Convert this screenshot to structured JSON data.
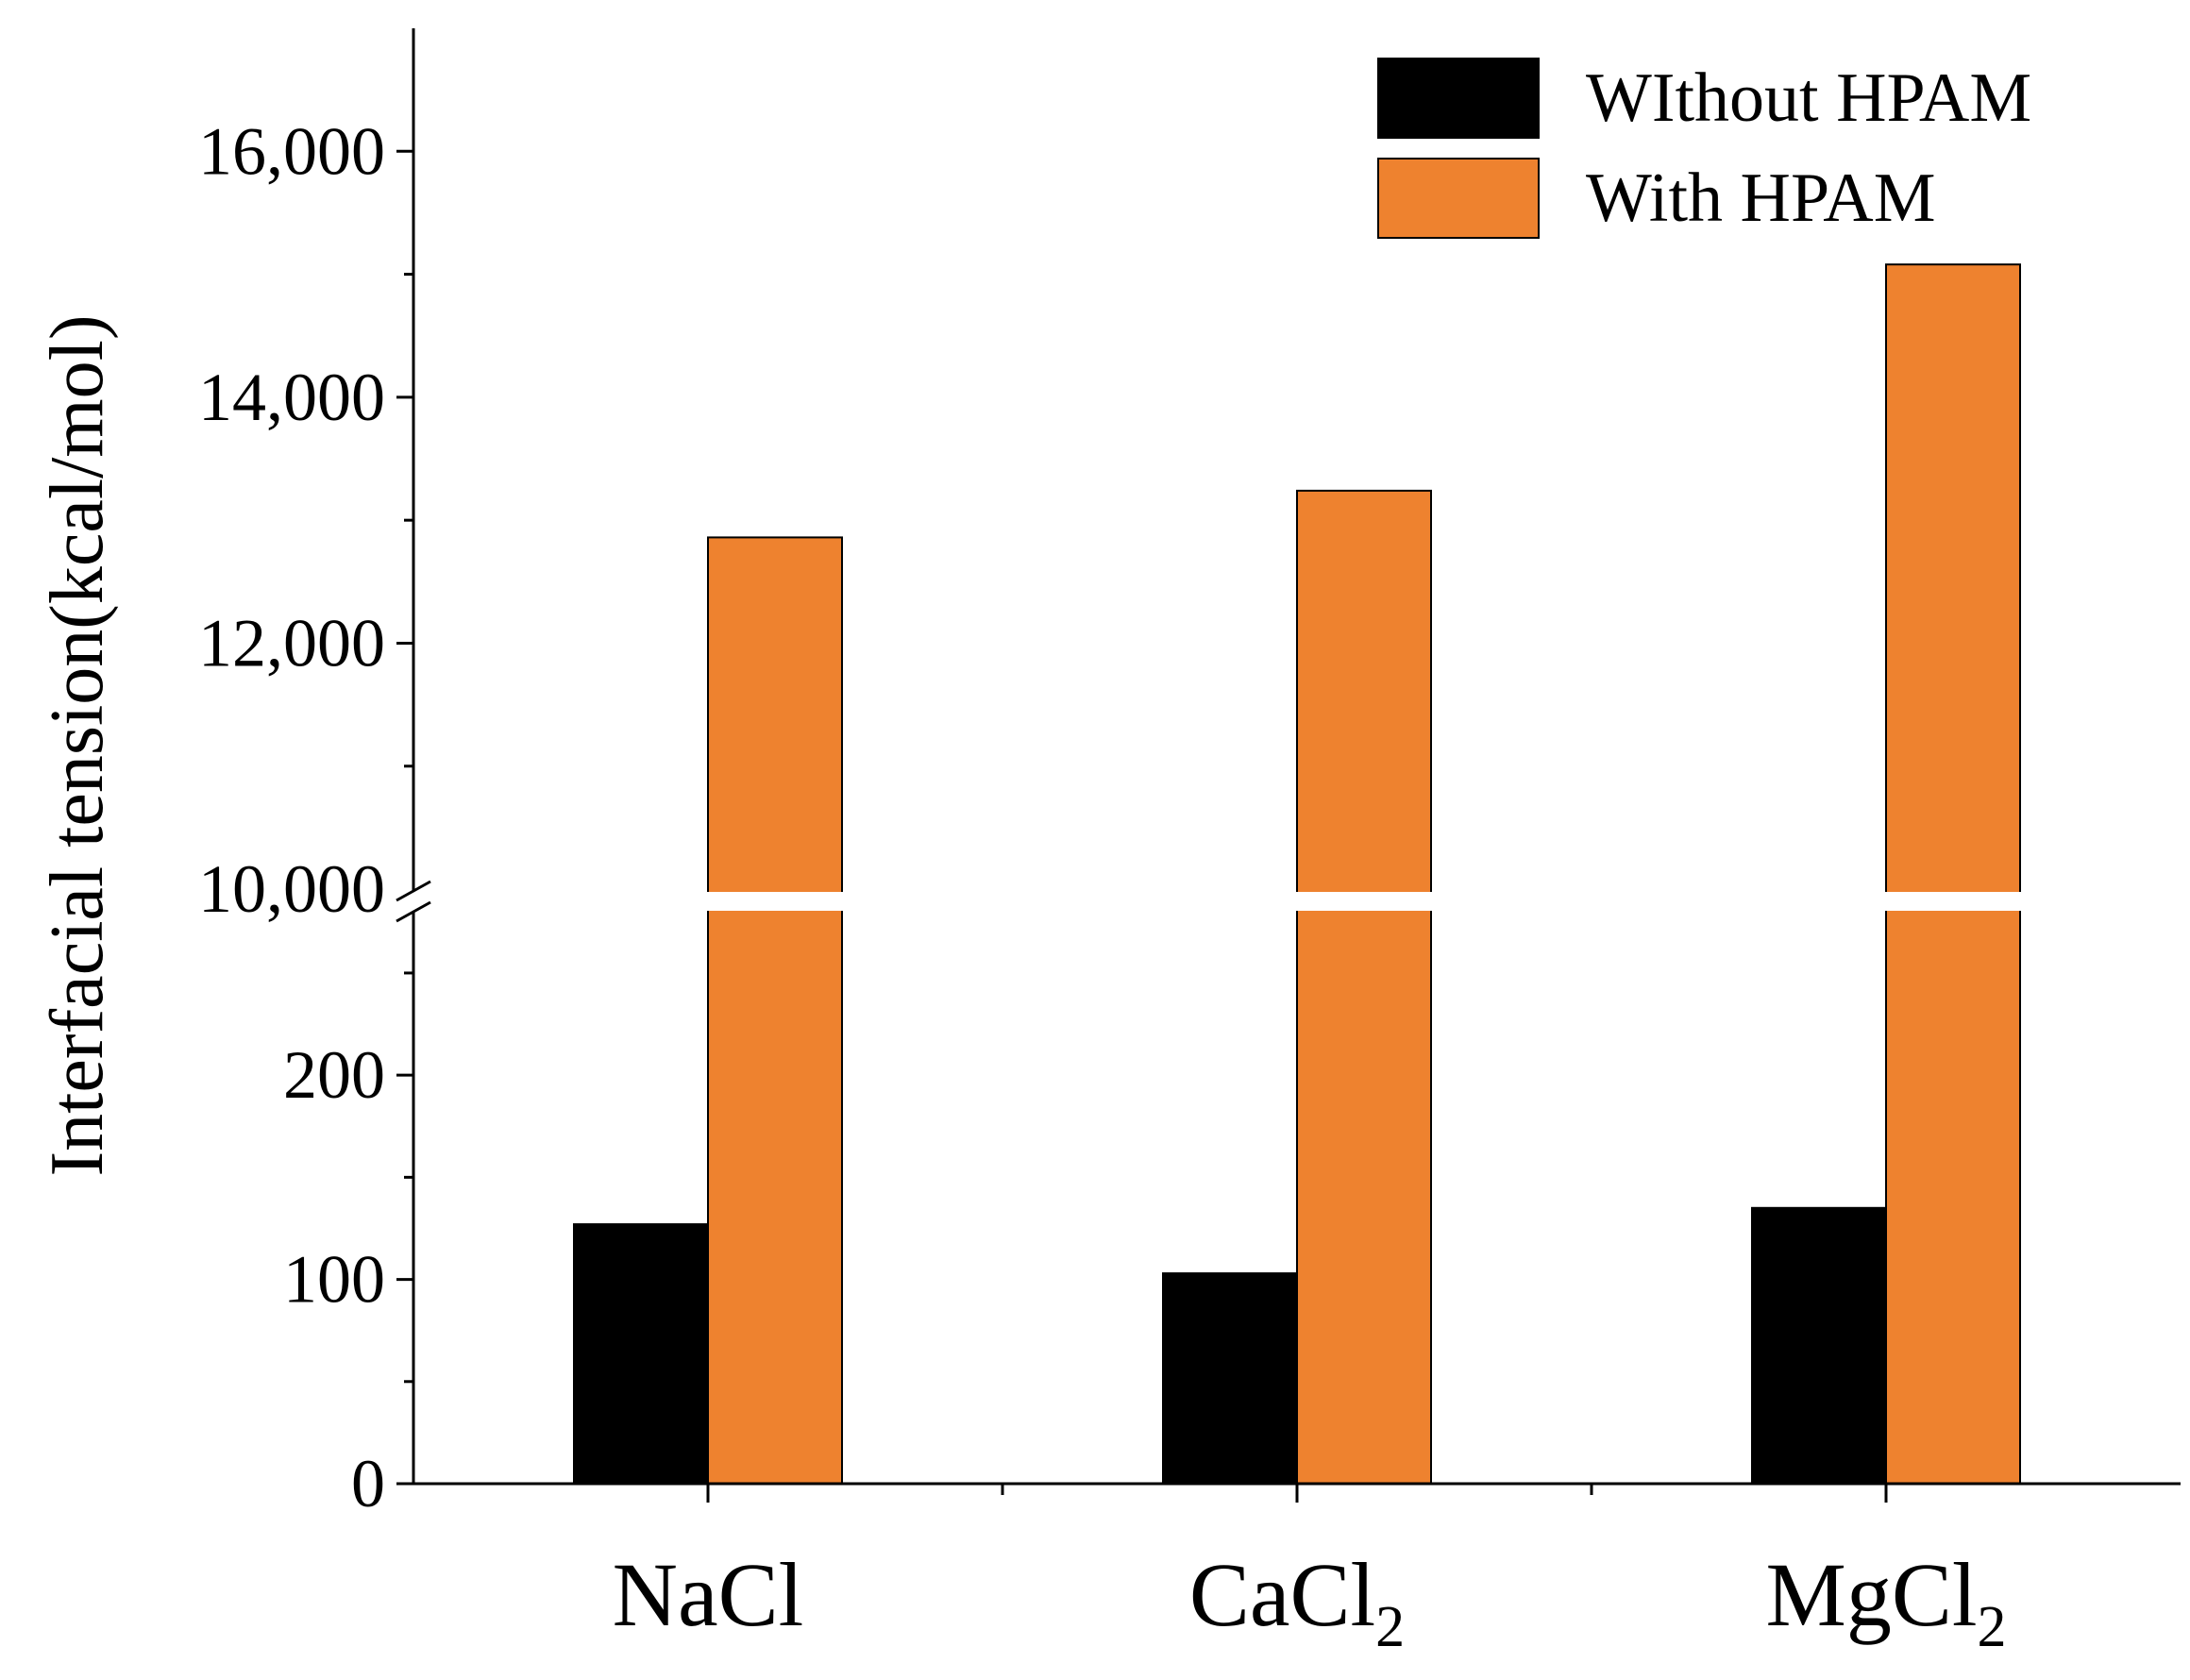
{
  "chart_data": {
    "type": "bar",
    "title": "",
    "xlabel": "",
    "ylabel": "Interfacial tension(kcal/mol)",
    "categories": [
      {
        "name": "NaCl",
        "base": "NaCl",
        "subscript": ""
      },
      {
        "name": "CaCl2",
        "base": "CaCl",
        "subscript": "2"
      },
      {
        "name": "MgCl2",
        "base": "MgCl",
        "subscript": "2"
      }
    ],
    "series": [
      {
        "name": "WIthout HPAM",
        "color": "#000000",
        "values": [
          127,
          103,
          135
        ]
      },
      {
        "name": "With HPAM",
        "color": "#EE822F",
        "values": [
          12860,
          13240,
          15080
        ]
      }
    ],
    "broken_axis": {
      "lower_range": [
        0,
        280
      ],
      "upper_range": [
        9985,
        17000
      ],
      "lower_ticks": [
        0,
        100,
        200
      ],
      "lower_tick_labels": [
        "0",
        "100",
        "200"
      ],
      "upper_ticks": [
        10000,
        12000,
        14000,
        16000
      ],
      "upper_tick_labels": [
        "10,000",
        "12,000",
        "14,000",
        "16,000"
      ],
      "lower_minor_step": 50,
      "upper_minor_step": 1000
    },
    "legend_position": "top-right",
    "grid": false
  }
}
